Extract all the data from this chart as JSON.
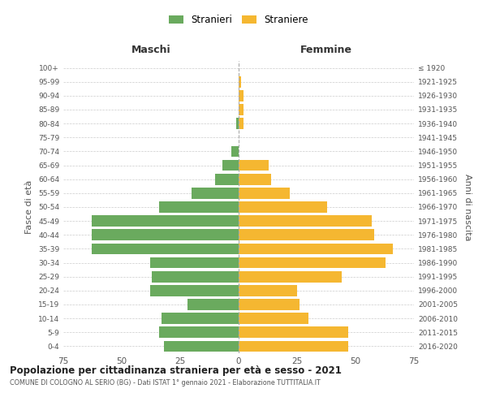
{
  "age_groups": [
    "0-4",
    "5-9",
    "10-14",
    "15-19",
    "20-24",
    "25-29",
    "30-34",
    "35-39",
    "40-44",
    "45-49",
    "50-54",
    "55-59",
    "60-64",
    "65-69",
    "70-74",
    "75-79",
    "80-84",
    "85-89",
    "90-94",
    "95-99",
    "100+"
  ],
  "birth_years": [
    "2016-2020",
    "2011-2015",
    "2006-2010",
    "2001-2005",
    "1996-2000",
    "1991-1995",
    "1986-1990",
    "1981-1985",
    "1976-1980",
    "1971-1975",
    "1966-1970",
    "1961-1965",
    "1956-1960",
    "1951-1955",
    "1946-1950",
    "1941-1945",
    "1936-1940",
    "1931-1935",
    "1926-1930",
    "1921-1925",
    "≤ 1920"
  ],
  "males": [
    32,
    34,
    33,
    22,
    38,
    37,
    38,
    63,
    63,
    63,
    34,
    20,
    10,
    7,
    3,
    0,
    1,
    0,
    0,
    0,
    0
  ],
  "females": [
    47,
    47,
    30,
    26,
    25,
    44,
    63,
    66,
    58,
    57,
    38,
    22,
    14,
    13,
    0,
    0,
    2,
    2,
    2,
    1,
    0
  ],
  "male_color": "#6aaa5e",
  "female_color": "#f5b731",
  "background_color": "#ffffff",
  "grid_color": "#cccccc",
  "title": "Popolazione per cittadinanza straniera per età e sesso - 2021",
  "subtitle": "COMUNE DI COLOGNO AL SERIO (BG) - Dati ISTAT 1° gennaio 2021 - Elaborazione TUTTITALIA.IT",
  "xlabel_left": "Maschi",
  "xlabel_right": "Femmine",
  "ylabel_left": "Fasce di età",
  "ylabel_right": "Anni di nascita",
  "legend_male": "Stranieri",
  "legend_female": "Straniere",
  "xlim": 75,
  "bar_height": 0.8
}
